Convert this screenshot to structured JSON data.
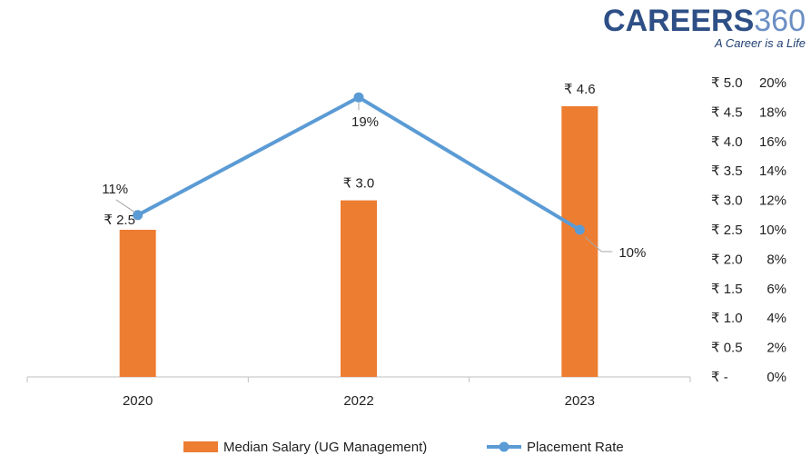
{
  "logo": {
    "brand": "CAREERS",
    "brand_num": "360",
    "tagline": "A Career is a Life"
  },
  "chart_data": {
    "type": "bar",
    "categories": [
      "2020",
      "2022",
      "2023"
    ],
    "series": [
      {
        "name": "Median Salary (UG Management)",
        "type": "bar",
        "axis": "left",
        "values": [
          2.5,
          3.0,
          4.6
        ],
        "labels": [
          "₹ 2.5",
          "₹ 3.0",
          "₹ 4.6"
        ],
        "color": "#ed7d31"
      },
      {
        "name": "Placement Rate",
        "type": "line",
        "axis": "right",
        "values": [
          11,
          19,
          10
        ],
        "labels": [
          "11%",
          "19%",
          "10%"
        ],
        "color": "#5b9bd5"
      }
    ],
    "y_left": {
      "ylim": [
        0,
        5.0
      ],
      "ticks": [
        "₹ -",
        "₹ 0.5",
        "₹ 1.0",
        "₹ 1.5",
        "₹ 2.0",
        "₹ 2.5",
        "₹ 3.0",
        "₹ 3.5",
        "₹ 4.0",
        "₹ 4.5",
        "₹ 5.0"
      ]
    },
    "y_right": {
      "ylim": [
        0,
        20
      ],
      "ticks": [
        "0%",
        "2%",
        "4%",
        "6%",
        "8%",
        "10%",
        "12%",
        "14%",
        "16%",
        "18%",
        "20%"
      ]
    },
    "grid": false,
    "legend": "bottom"
  }
}
